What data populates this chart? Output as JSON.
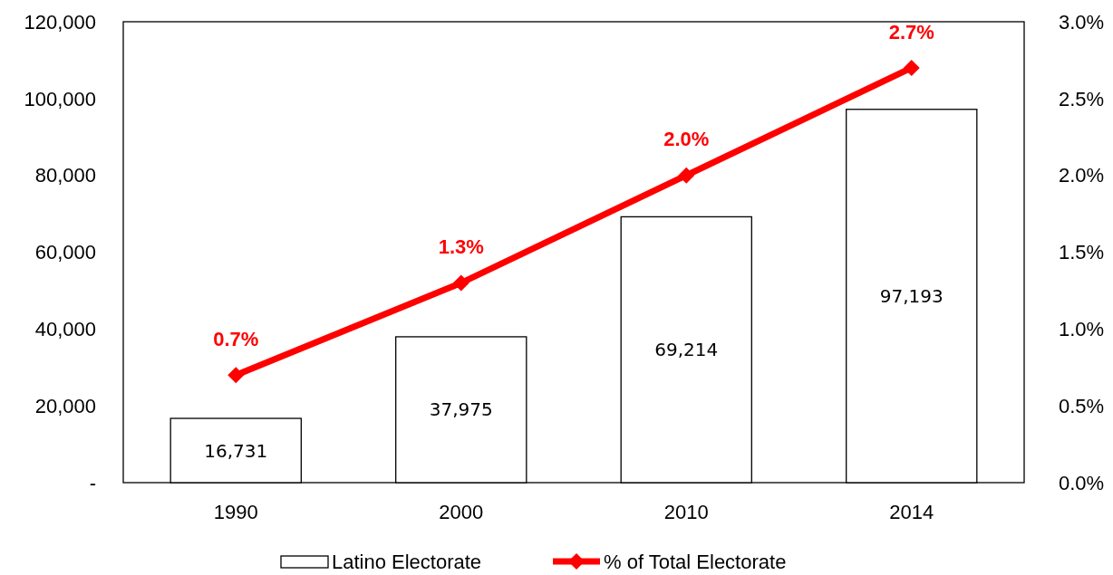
{
  "chart_data": {
    "type": "bar",
    "categories": [
      "1990",
      "2000",
      "2010",
      "2014"
    ],
    "series": [
      {
        "name": "Latino Electorate",
        "color": "#ffffff",
        "values": [
          16731,
          37975,
          69214,
          97193
        ],
        "value_labels": [
          "16,731",
          "37,975",
          "69,214",
          "97,193"
        ]
      },
      {
        "name": "% of Total Electorate",
        "type": "line",
        "axis": "y2",
        "color": "#ff0000",
        "values": [
          0.7,
          1.3,
          2.0,
          2.7
        ],
        "value_labels": [
          "0.7%",
          "1.3%",
          "2.0%",
          "2.7%"
        ],
        "marker": "diamond"
      }
    ],
    "ylim": [
      0,
      120000
    ],
    "yticks": [
      {
        "value": 0,
        "label": "-"
      },
      {
        "value": 20000,
        "label": "20,000"
      },
      {
        "value": 40000,
        "label": "40,000"
      },
      {
        "value": 60000,
        "label": "60,000"
      },
      {
        "value": 80000,
        "label": "80,000"
      },
      {
        "value": 100000,
        "label": "100,000"
      },
      {
        "value": 120000,
        "label": "120,000"
      }
    ],
    "y2lim": [
      0,
      3
    ],
    "y2ticks": [
      {
        "value": 0,
        "label": "0.0%"
      },
      {
        "value": 0.5,
        "label": "0.5%"
      },
      {
        "value": 1,
        "label": "1.0%"
      },
      {
        "value": 1.5,
        "label": "1.5%"
      },
      {
        "value": 2,
        "label": "2.0%"
      },
      {
        "value": 2.5,
        "label": "2.5%"
      },
      {
        "value": 3,
        "label": "3.0%"
      }
    ],
    "grid": false,
    "legend": "bottom"
  }
}
